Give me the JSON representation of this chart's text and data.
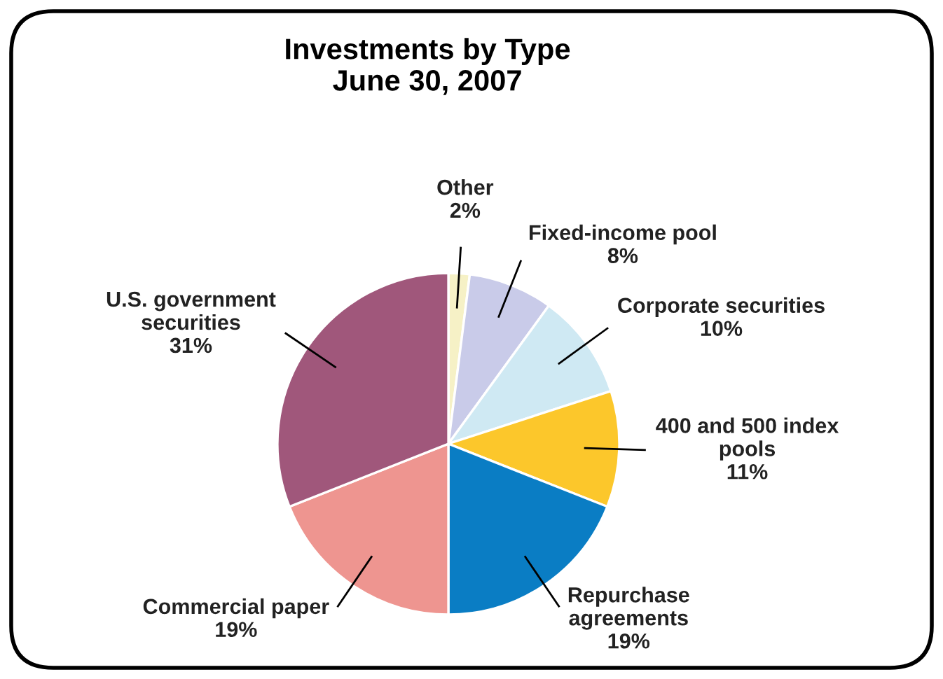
{
  "chart_data": {
    "type": "pie",
    "title": "Investments by Type\nJune 30, 2007",
    "categories": [
      "Other",
      "Fixed-income pool",
      "Corporate securities",
      "400 and 500 index\npools",
      "Repurchase\nagreements",
      "Commercial paper",
      "U.S. government\nsecurities"
    ],
    "values": [
      2,
      8,
      10,
      11,
      19,
      19,
      31
    ],
    "value_labels": [
      "2%",
      "8%",
      "10%",
      "11%",
      "19%",
      "19%",
      "31%"
    ],
    "colors": [
      "#f6f1c6",
      "#c9cbe9",
      "#cfe9f3",
      "#fcc72b",
      "#0a7dc4",
      "#ee9590",
      "#a0577b"
    ]
  }
}
